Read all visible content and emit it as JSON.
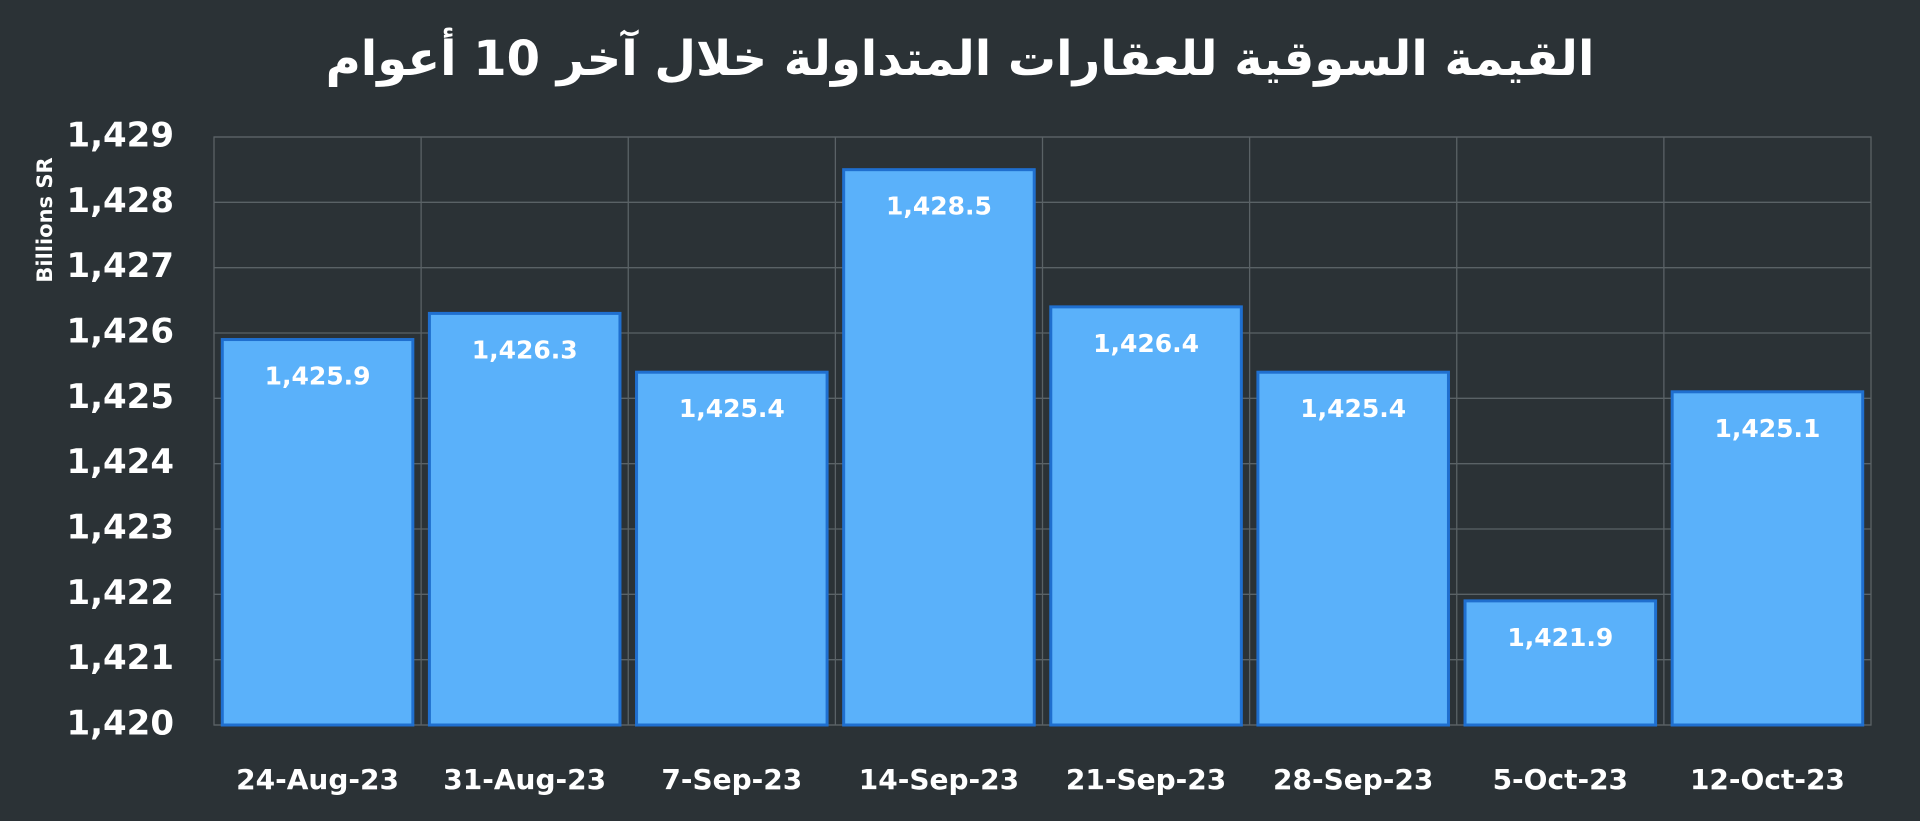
{
  "chart_data": {
    "type": "bar",
    "title": "القيمة السوقية للعقارات المتداولة خلال آخر 10 أعوام",
    "y_label": "Billions SR",
    "categories": [
      "24-Aug-23",
      "31-Aug-23",
      "7-Sep-23",
      "14-Sep-23",
      "21-Sep-23",
      "28-Sep-23",
      "5-Oct-23",
      "12-Oct-23"
    ],
    "values": [
      1425.9,
      1426.3,
      1425.4,
      1428.5,
      1426.4,
      1425.4,
      1421.9,
      1425.1
    ],
    "value_labels": [
      "1,425.9",
      "1,426.3",
      "1,425.4",
      "1,428.5",
      "1,426.4",
      "1,425.4",
      "1,421.9",
      "1,425.1"
    ],
    "color": "#5ab1fa",
    "ylim": [
      1420,
      1429
    ],
    "yticks": [
      {
        "value": 1420,
        "label": "1,420"
      },
      {
        "value": 1421,
        "label": "1,421"
      },
      {
        "value": 1422,
        "label": "1,422"
      },
      {
        "value": 1423,
        "label": "1,423"
      },
      {
        "value": 1424,
        "label": "1,424"
      },
      {
        "value": 1425,
        "label": "1,425"
      },
      {
        "value": 1426,
        "label": "1,426"
      },
      {
        "value": 1427,
        "label": "1,427"
      },
      {
        "value": 1428,
        "label": "1,428"
      },
      {
        "value": 1429,
        "label": "1,429"
      }
    ],
    "grid": true
  }
}
